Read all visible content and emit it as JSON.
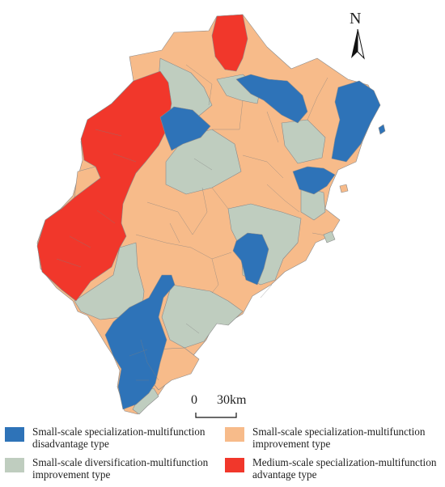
{
  "north": {
    "label": "N"
  },
  "scale": {
    "zero": "0",
    "distance": "30km"
  },
  "colors": {
    "small_specialization_disadvantage": "#2e73b8",
    "small_specialization_improvement": "#f7bb8a",
    "small_diversification_improvement": "#bfcdbf",
    "medium_specialization_advantage": "#f1372b"
  },
  "legend": [
    {
      "key": "small_specialization_disadvantage",
      "line1": "Small-scale specialization-multifunction",
      "line2": "disadvantage type"
    },
    {
      "key": "small_specialization_improvement",
      "line1": "Small-scale specialization-multifunction",
      "line2": "improvement type"
    },
    {
      "key": "small_diversification_improvement",
      "line1": "Small-scale diversification-multifunction",
      "line2": "improvement type"
    },
    {
      "key": "medium_specialization_advantage",
      "line1": "Medium-scale specialization-multifunction",
      "line2": "advantage type"
    }
  ]
}
